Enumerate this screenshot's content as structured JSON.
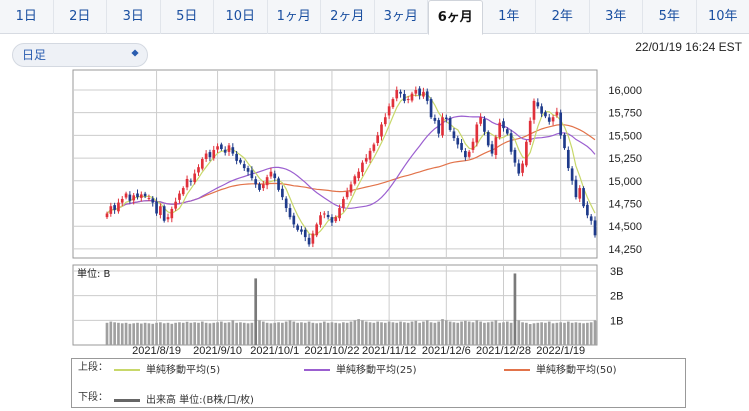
{
  "tabs": [
    {
      "label": "1日",
      "active": false
    },
    {
      "label": "2日",
      "active": false
    },
    {
      "label": "3日",
      "active": false
    },
    {
      "label": "5日",
      "active": false
    },
    {
      "label": "10日",
      "active": false
    },
    {
      "label": "1ヶ月",
      "active": false
    },
    {
      "label": "2ヶ月",
      "active": false
    },
    {
      "label": "3ヶ月",
      "active": false
    },
    {
      "label": "6ヶ月",
      "active": true
    },
    {
      "label": "1年",
      "active": false
    },
    {
      "label": "2年",
      "active": false
    },
    {
      "label": "3年",
      "active": false
    },
    {
      "label": "5年",
      "active": false
    },
    {
      "label": "10年",
      "active": false
    }
  ],
  "controls": {
    "interval_value": "日足",
    "timestamp": "22/01/19 16:24 EST"
  },
  "legend": {
    "upper_label": "上段：",
    "lower_label": "下段：",
    "items": [
      {
        "label": "単純移動平均(5)",
        "color": "#c8d86a"
      },
      {
        "label": "単純移動平均(25)",
        "color": "#9b5fd0"
      },
      {
        "label": "単純移動平均(50)",
        "color": "#e2734a"
      }
    ],
    "volume_item": {
      "label": "出来高 単位:(B株/口/枚)",
      "color": "#666666"
    }
  },
  "chart_data": {
    "type": "candlestick",
    "price_axis": {
      "ylim": [
        14150,
        16220
      ],
      "ticks": [
        14250,
        14500,
        14750,
        15000,
        15250,
        15500,
        15750,
        16000
      ],
      "tick_labels": [
        "14,250",
        "14,500",
        "14,750",
        "15,000",
        "15,250",
        "15,500",
        "15,750",
        "16,000"
      ]
    },
    "volume_axis": {
      "unit_label": "単位: B",
      "ylim": [
        0,
        3
      ],
      "ticks": [
        1,
        2,
        3
      ],
      "tick_labels": [
        "1B",
        "2B",
        "3B"
      ]
    },
    "x_tick_labels": [
      "2021/8/19",
      "2021/9/10",
      "2021/10/1",
      "2021/10/22",
      "2021/11/12",
      "2021/12/6",
      "2021/12/28",
      "2022/1/19"
    ],
    "colors": {
      "up": "#e0303a",
      "down": "#1e3a8a",
      "ma5": "#c8d86a",
      "ma25": "#9b5fd0",
      "ma50": "#e2734a",
      "volume": "#a0a0a0",
      "volume_peak": "#7a7a7a"
    },
    "closes": [
      14640,
      14720,
      14680,
      14760,
      14800,
      14860,
      14780,
      14840,
      14820,
      14850,
      14830,
      14810,
      14760,
      14640,
      14720,
      14560,
      14600,
      14690,
      14770,
      14860,
      14920,
      15020,
      14990,
      15080,
      15150,
      15240,
      15300,
      15260,
      15340,
      15380,
      15350,
      15310,
      15390,
      15300,
      15220,
      15200,
      15140,
      15100,
      15030,
      14960,
      14900,
      14960,
      15040,
      15100,
      15030,
      14900,
      14820,
      14700,
      14600,
      14520,
      14460,
      14440,
      14380,
      14300,
      14420,
      14520,
      14620,
      14640,
      14600,
      14540,
      14600,
      14700,
      14800,
      14880,
      14960,
      15050,
      15100,
      15200,
      15250,
      15330,
      15400,
      15500,
      15620,
      15700,
      15820,
      15900,
      16000,
      15960,
      15880,
      15900,
      15960,
      16000,
      15940,
      15980,
      15880,
      15700,
      15660,
      15520,
      15700,
      15680,
      15560,
      15470,
      15400,
      15340,
      15260,
      15320,
      15430,
      15620,
      15700,
      15540,
      15390,
      15300,
      15480,
      15640,
      15580,
      15520,
      15320,
      15200,
      15080,
      15190,
      15430,
      15660,
      15880,
      15820,
      15740,
      15710,
      15650,
      15700,
      15760,
      15500,
      15360,
      15140,
      15000,
      14820,
      14920,
      14720,
      14620,
      14560,
      14400
    ],
    "volumes": [
      0.9,
      0.95,
      0.92,
      0.9,
      0.88,
      0.9,
      0.86,
      0.88,
      0.9,
      0.87,
      0.9,
      0.88,
      0.86,
      0.9,
      0.92,
      0.88,
      0.9,
      0.86,
      0.9,
      0.92,
      0.9,
      0.94,
      0.9,
      0.92,
      0.9,
      0.95,
      0.9,
      0.88,
      0.9,
      0.92,
      0.95,
      0.9,
      0.92,
      1.0,
      0.9,
      0.92,
      0.9,
      0.88,
      0.9,
      2.7,
      1.0,
      0.95,
      0.9,
      0.88,
      0.9,
      0.92,
      0.9,
      0.95,
      1.0,
      0.95,
      0.9,
      0.92,
      0.9,
      0.95,
      0.9,
      0.88,
      0.9,
      0.95,
      0.9,
      0.92,
      0.9,
      0.88,
      0.92,
      0.9,
      0.95,
      1.0,
      1.05,
      1.0,
      0.95,
      0.92,
      0.9,
      0.95,
      0.92,
      0.9,
      0.95,
      0.92,
      0.9,
      0.95,
      0.92,
      0.9,
      0.95,
      0.98,
      0.9,
      0.95,
      1.0,
      0.92,
      0.9,
      0.95,
      1.05,
      1.0,
      0.95,
      0.92,
      0.9,
      0.95,
      0.98,
      0.95,
      0.92,
      1.0,
      0.95,
      0.9,
      0.92,
      0.95,
      1.0,
      0.9,
      0.92,
      0.95,
      0.9,
      2.9,
      1.0,
      0.92,
      0.9,
      0.85,
      0.88,
      0.9,
      0.92,
      0.9,
      0.95,
      0.88,
      0.9,
      0.92,
      0.9,
      0.95,
      0.9,
      0.92,
      0.9,
      0.88,
      0.9,
      0.92,
      1.0
    ]
  }
}
